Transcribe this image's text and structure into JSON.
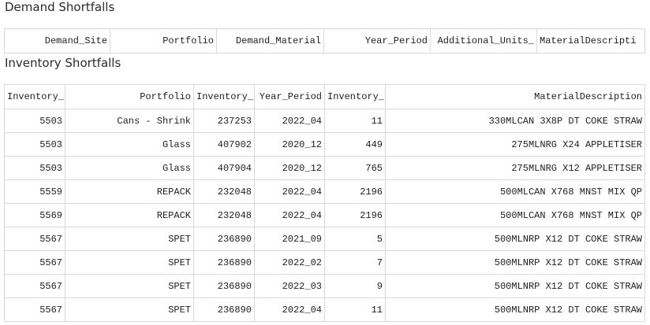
{
  "demand": {
    "title": "Demand Shortfalls",
    "headers": [
      "Demand_Site",
      "Portfolio",
      "Demand_Material",
      "Year_Period",
      "Additional_Units_",
      "MaterialDescripti"
    ]
  },
  "inventory": {
    "title": "Inventory Shortfalls",
    "headers": [
      "Inventory_",
      "Portfolio",
      "Inventory_",
      "Year_Period",
      "Inventory_",
      "MaterialDescription"
    ],
    "rows": [
      [
        "5503",
        "Cans - Shrink",
        "237253",
        "2022_04",
        "11",
        "330MLCAN 3X8P DT COKE STRAW"
      ],
      [
        "5503",
        "Glass",
        "407902",
        "2020_12",
        "449",
        "275MLNRG X24 APPLETISER"
      ],
      [
        "5503",
        "Glass",
        "407904",
        "2020_12",
        "765",
        "275MLNRG X12 APPLETISER"
      ],
      [
        "5559",
        "REPACK",
        "232048",
        "2022_04",
        "2196",
        "500MLCAN X768 MNST MIX QP"
      ],
      [
        "5569",
        "REPACK",
        "232048",
        "2022_04",
        "2196",
        "500MLCAN X768 MNST MIX QP"
      ],
      [
        "5567",
        "SPET",
        "236890",
        "2021_09",
        "5",
        "500MLNRP X12 DT COKE STRAW"
      ],
      [
        "5567",
        "SPET",
        "236890",
        "2022_02",
        "7",
        "500MLNRP X12 DT COKE STRAW"
      ],
      [
        "5567",
        "SPET",
        "236890",
        "2022_03",
        "9",
        "500MLNRP X12 DT COKE STRAW"
      ],
      [
        "5567",
        "SPET",
        "236890",
        "2022_04",
        "11",
        "500MLNRP X12 DT COKE STRAW"
      ]
    ]
  }
}
